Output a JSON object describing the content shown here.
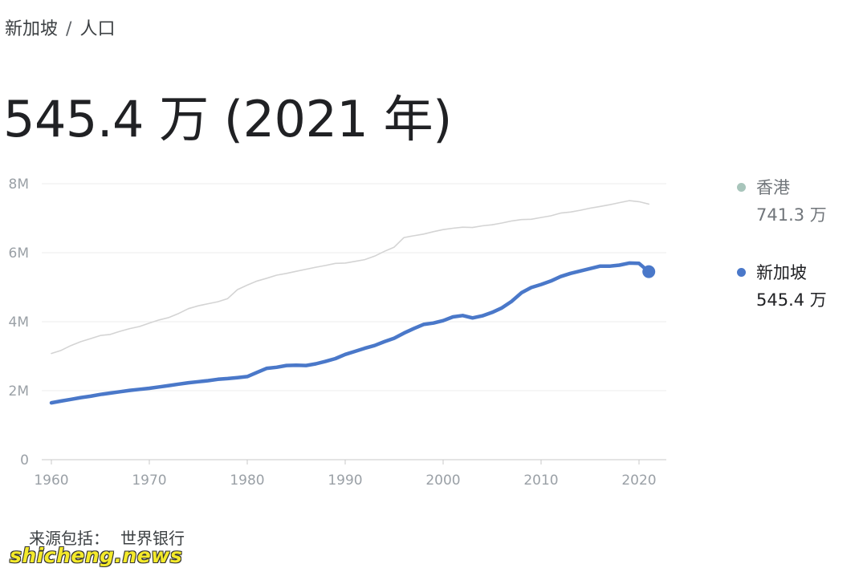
{
  "breadcrumb": {
    "country": "新加坡",
    "separator": "/",
    "topic": "人口"
  },
  "headline": "545.4 万 (2021 年)",
  "legend": [
    {
      "name": "香港",
      "value": "741.3 万",
      "color": "#a8c5bb"
    },
    {
      "name": "新加坡",
      "value": "545.4 万",
      "color": "#4a78c9"
    }
  ],
  "source": {
    "label": "来源包括：",
    "name": "世界银行"
  },
  "watermark": "shicheng.news",
  "chart_data": {
    "type": "line",
    "x": [
      1960,
      1961,
      1962,
      1963,
      1964,
      1965,
      1966,
      1967,
      1968,
      1969,
      1970,
      1971,
      1972,
      1973,
      1974,
      1975,
      1976,
      1977,
      1978,
      1979,
      1980,
      1981,
      1982,
      1983,
      1984,
      1985,
      1986,
      1987,
      1988,
      1989,
      1990,
      1991,
      1992,
      1993,
      1994,
      1995,
      1996,
      1997,
      1998,
      1999,
      2000,
      2001,
      2002,
      2003,
      2004,
      2005,
      2006,
      2007,
      2008,
      2009,
      2010,
      2011,
      2012,
      2013,
      2014,
      2015,
      2016,
      2017,
      2018,
      2019,
      2020,
      2021
    ],
    "series": [
      {
        "name": "香港",
        "color": "#d4d4d4",
        "values": [
          3.08,
          3.17,
          3.31,
          3.42,
          3.51,
          3.6,
          3.63,
          3.72,
          3.8,
          3.86,
          3.96,
          4.05,
          4.12,
          4.24,
          4.38,
          4.46,
          4.52,
          4.58,
          4.67,
          4.93,
          5.06,
          5.18,
          5.26,
          5.35,
          5.4,
          5.46,
          5.52,
          5.58,
          5.63,
          5.69,
          5.7,
          5.75,
          5.8,
          5.9,
          6.04,
          6.16,
          6.44,
          6.49,
          6.54,
          6.61,
          6.67,
          6.71,
          6.74,
          6.73,
          6.78,
          6.81,
          6.86,
          6.92,
          6.96,
          6.97,
          7.02,
          7.07,
          7.15,
          7.18,
          7.23,
          7.29,
          7.34,
          7.39,
          7.45,
          7.51,
          7.48,
          7.41
        ]
      },
      {
        "name": "新加坡",
        "color": "#4a78c9",
        "values": [
          1.65,
          1.7,
          1.75,
          1.8,
          1.84,
          1.89,
          1.93,
          1.97,
          2.01,
          2.04,
          2.07,
          2.11,
          2.15,
          2.19,
          2.23,
          2.26,
          2.29,
          2.33,
          2.35,
          2.38,
          2.41,
          2.53,
          2.65,
          2.68,
          2.73,
          2.74,
          2.73,
          2.78,
          2.85,
          2.93,
          3.05,
          3.14,
          3.23,
          3.31,
          3.42,
          3.52,
          3.67,
          3.8,
          3.92,
          3.96,
          4.03,
          4.14,
          4.18,
          4.11,
          4.17,
          4.27,
          4.4,
          4.59,
          4.84,
          4.99,
          5.08,
          5.18,
          5.31,
          5.4,
          5.47,
          5.54,
          5.61,
          5.61,
          5.64,
          5.7,
          5.69,
          5.45
        ]
      }
    ],
    "y_ticks": [
      "0",
      "2M",
      "4M",
      "6M",
      "8M"
    ],
    "x_ticks": [
      1960,
      1970,
      1980,
      1990,
      2000,
      2010,
      2020
    ],
    "xlim": [
      1960,
      2021
    ],
    "ylim": [
      0,
      8
    ],
    "grid": true
  }
}
